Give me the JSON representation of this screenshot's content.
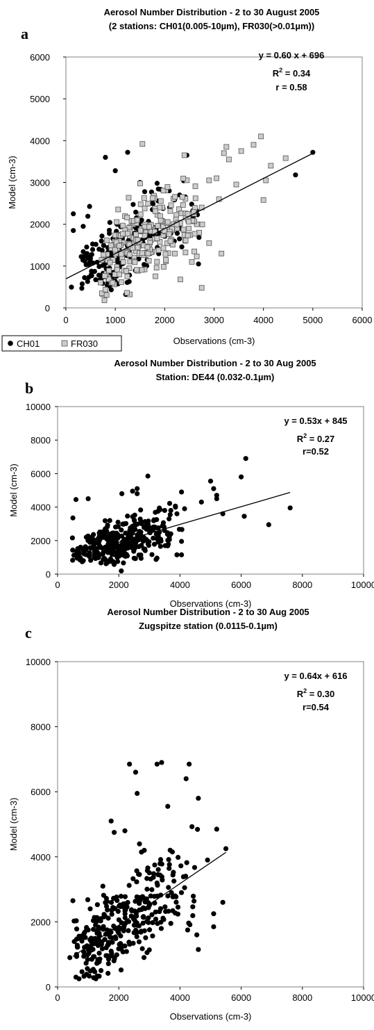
{
  "chart_data": [
    {
      "type": "scatter",
      "panel": "a",
      "title_lines": [
        "Aerosol Number Distribution - 2 to 30 August 2005",
        "(2 stations: CH01(0.005-10µm), FR030(>0.01µm))"
      ],
      "xlabel": "Observations (cm-3)",
      "ylabel": "Model (cm-3)",
      "xlim": [
        0,
        6000
      ],
      "ylim": [
        0,
        6000
      ],
      "xticks": [
        "0",
        "1000",
        "2000",
        "3000",
        "4000",
        "5000",
        "6000"
      ],
      "yticks": [
        "0",
        "1000",
        "2000",
        "3000",
        "4000",
        "5000",
        "6000"
      ],
      "equation": "y = 0.60 x + 696",
      "r2_label": "R",
      "r2_value": " = 0.34",
      "r_label": "r = 0.58",
      "fit": {
        "slope": 0.6,
        "intercept": 696,
        "x_range": [
          0,
          5000
        ]
      },
      "legend": {
        "position": "bottom-left",
        "entries": [
          {
            "name": "CH01",
            "marker": "circle"
          },
          {
            "name": "FR030",
            "marker": "square"
          }
        ]
      },
      "series": [
        {
          "name": "CH01",
          "marker": "circle",
          "color": "#000000",
          "cloud": {
            "n": 200,
            "seed": 11,
            "x_range": [
              80,
              2900
            ],
            "x_mode": 900,
            "noise": 650,
            "y_min": 300,
            "y_max": 3700,
            "slope": 0.6,
            "intercept": 696
          },
          "points": [
            [
              5000,
              3720
            ],
            [
              4650,
              3180
            ],
            [
              2450,
              3650
            ],
            [
              1250,
              3720
            ],
            [
              800,
              3600
            ],
            [
              1000,
              3280
            ],
            [
              150,
              2250
            ],
            [
              350,
              1950
            ],
            [
              150,
              1850
            ],
            [
              2100,
              2400
            ],
            [
              1750,
              2350
            ],
            [
              1500,
              3000
            ],
            [
              2300,
              1650
            ]
          ]
        },
        {
          "name": "FR030",
          "marker": "square",
          "color": "#cccccc",
          "cloud": {
            "n": 230,
            "seed": 29,
            "x_range": [
              600,
              3000
            ],
            "x_mode": 1300,
            "noise": 600,
            "y_min": 180,
            "y_max": 3400,
            "slope": 0.6,
            "intercept": 696
          },
          "points": [
            [
              3950,
              4100
            ],
            [
              3800,
              3900
            ],
            [
              3550,
              3750
            ],
            [
              3250,
              3850
            ],
            [
              3200,
              3700
            ],
            [
              4050,
              3050
            ],
            [
              4000,
              2580
            ],
            [
              4150,
              3400
            ],
            [
              4450,
              3580
            ],
            [
              3450,
              2950
            ],
            [
              3050,
              3100
            ],
            [
              2900,
              3050
            ],
            [
              3300,
              3550
            ],
            [
              2750,
              480
            ],
            [
              3150,
              1300
            ],
            [
              2900,
              1550
            ],
            [
              1550,
              3920
            ],
            [
              2400,
              3650
            ],
            [
              3100,
              2600
            ],
            [
              2750,
              2400
            ],
            [
              2600,
              2250
            ],
            [
              2650,
              2000
            ],
            [
              2700,
              1800
            ],
            [
              2550,
              1100
            ],
            [
              2600,
              1350
            ],
            [
              780,
              180
            ],
            [
              920,
              600
            ]
          ]
        }
      ]
    },
    {
      "type": "scatter",
      "panel": "b",
      "title_lines": [
        "Aerosol Number Distribution - 2 to 30 Aug 2005",
        "Station: DE44 (0.032-0.1µm)"
      ],
      "xlabel": "Observations (cm-3)",
      "ylabel": "Model (cm-3)",
      "xlim": [
        0,
        10000
      ],
      "ylim": [
        0,
        10000
      ],
      "xticks": [
        "0",
        "2000",
        "4000",
        "6000",
        "8000",
        "10000"
      ],
      "yticks": [
        "0",
        "2000",
        "4000",
        "6000",
        "8000",
        "10000"
      ],
      "equation": "y = 0.53x + 845",
      "r2_label": "R",
      "r2_value": " = 0.27",
      "r_label": "r=0.52",
      "fit": {
        "slope": 0.53,
        "intercept": 845,
        "x_range": [
          500,
          7600
        ]
      },
      "series": [
        {
          "name": "DE44",
          "marker": "circle",
          "color": "#000000",
          "cloud": {
            "n": 330,
            "seed": 47,
            "x_range": [
              400,
              4200
            ],
            "x_mode": 1800,
            "noise": 850,
            "y_min": 150,
            "y_max": 5200,
            "slope": 0.53,
            "intercept": 845
          },
          "points": [
            [
              6150,
              6900
            ],
            [
              6000,
              5800
            ],
            [
              5000,
              5550
            ],
            [
              5100,
              5100
            ],
            [
              5200,
              4700
            ],
            [
              5200,
              4500
            ],
            [
              4700,
              4300
            ],
            [
              5400,
              3600
            ],
            [
              6100,
              3450
            ],
            [
              7600,
              3950
            ],
            [
              6900,
              2950
            ],
            [
              4050,
              4900
            ],
            [
              4150,
              3900
            ],
            [
              3900,
              1150
            ],
            [
              4050,
              1150
            ],
            [
              4050,
              1950
            ],
            [
              3700,
              2400
            ],
            [
              3700,
              3800
            ],
            [
              2950,
              5850
            ],
            [
              2600,
              4800
            ],
            [
              2600,
              5100
            ],
            [
              2450,
              4950
            ],
            [
              2100,
              4800
            ],
            [
              1000,
              4500
            ],
            [
              600,
              4450
            ],
            [
              500,
              3350
            ],
            [
              3500,
              3800
            ],
            [
              3900,
              3600
            ]
          ]
        }
      ]
    },
    {
      "type": "scatter",
      "panel": "c",
      "title_lines": [
        "Aerosol Number Distribution - 2 to 30 Aug 2005",
        "Zugspitze station (0.0115-0.1µm)"
      ],
      "xlabel": "Observations (cm-3)",
      "ylabel": "Model (cm-3)",
      "xlim": [
        0,
        10000
      ],
      "ylim": [
        0,
        10000
      ],
      "xticks": [
        "0",
        "2000",
        "4000",
        "6000",
        "8000",
        "10000"
      ],
      "yticks": [
        "0",
        "2000",
        "4000",
        "6000",
        "8000",
        "10000"
      ],
      "equation": "y = 0.64x + 616",
      "r2_label": "R",
      "r2_value": " = 0.30",
      "r_label": "r=0.54",
      "fit": {
        "slope": 0.64,
        "intercept": 616,
        "x_range": [
          500,
          5500
        ]
      },
      "series": [
        {
          "name": "Zugspitze",
          "marker": "circle",
          "color": "#000000",
          "cloud": {
            "n": 330,
            "seed": 83,
            "x_range": [
              380,
              4800
            ],
            "x_mode": 1300,
            "noise": 900,
            "y_min": 200,
            "y_max": 5600,
            "slope": 0.64,
            "intercept": 616
          },
          "points": [
            [
              2350,
              6850
            ],
            [
              2550,
              6600
            ],
            [
              3250,
              6850
            ],
            [
              3400,
              6900
            ],
            [
              4200,
              6400
            ],
            [
              4300,
              6850
            ],
            [
              4600,
              5800
            ],
            [
              3600,
              5550
            ],
            [
              2600,
              5950
            ],
            [
              1750,
              5100
            ],
            [
              1850,
              4750
            ],
            [
              2200,
              4800
            ],
            [
              5200,
              4850
            ],
            [
              5500,
              4250
            ],
            [
              5400,
              2600
            ],
            [
              5100,
              1850
            ],
            [
              4900,
              3900
            ],
            [
              5100,
              2250
            ],
            [
              4600,
              1150
            ],
            [
              4550,
              1600
            ],
            [
              4250,
              1750
            ],
            [
              500,
              2650
            ],
            [
              1000,
              1750
            ],
            [
              400,
              900
            ],
            [
              600,
              300
            ],
            [
              700,
              250
            ],
            [
              4150,
              3050
            ],
            [
              3750,
              4150
            ]
          ]
        }
      ]
    }
  ]
}
